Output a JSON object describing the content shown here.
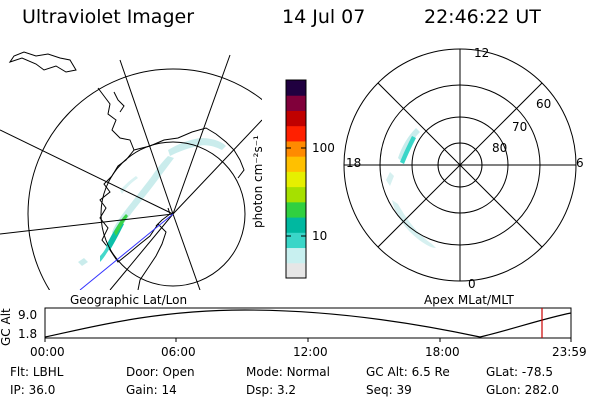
{
  "header": {
    "instrument": "Ultraviolet Imager",
    "date": "14 Jul 07",
    "time": "22:46:22 UT"
  },
  "colorbar": {
    "unit_label": "photon cm⁻²s⁻¹",
    "ticks": [
      "100",
      "10"
    ],
    "colors": [
      "#e6e6e6",
      "#c8f0f0",
      "#3ad6c8",
      "#00b8a0",
      "#30d040",
      "#a6e000",
      "#e6ef00",
      "#ffc000",
      "#ff8a00",
      "#ff2000",
      "#c00000",
      "#80003a",
      "#200040"
    ]
  },
  "left_map": {
    "caption": "Geographic Lat/Lon"
  },
  "right_map": {
    "caption": "Apex MLat/MLT",
    "mlt_labels": {
      "top": "12",
      "left": "18",
      "right": "6",
      "bottom": "0"
    },
    "lat_labels": [
      "60",
      "70",
      "80"
    ]
  },
  "altitude_plot": {
    "ylabel": "GC Alt",
    "yticks": [
      "9.0",
      "1.8"
    ],
    "xticks": [
      "00:00",
      "06:00",
      "12:00",
      "18:00",
      "23:59"
    ],
    "marker_color": "#cc0000"
  },
  "info": [
    [
      {
        "k": "Flt:",
        "v": "LBHL"
      },
      {
        "k": "Door:",
        "v": "Open"
      },
      {
        "k": "Mode:",
        "v": "Normal"
      },
      {
        "k": "GC Alt:",
        "v": "6.5 Re"
      },
      {
        "k": "GLat:",
        "v": "-78.5"
      }
    ],
    [
      {
        "k": "IP:",
        "v": "36.0"
      },
      {
        "k": "Gain:",
        "v": "14"
      },
      {
        "k": "Dsp:",
        "v": "3.2"
      },
      {
        "k": "Seq:",
        "v": "39"
      },
      {
        "k": "GLon:",
        "v": "282.0"
      }
    ]
  ]
}
